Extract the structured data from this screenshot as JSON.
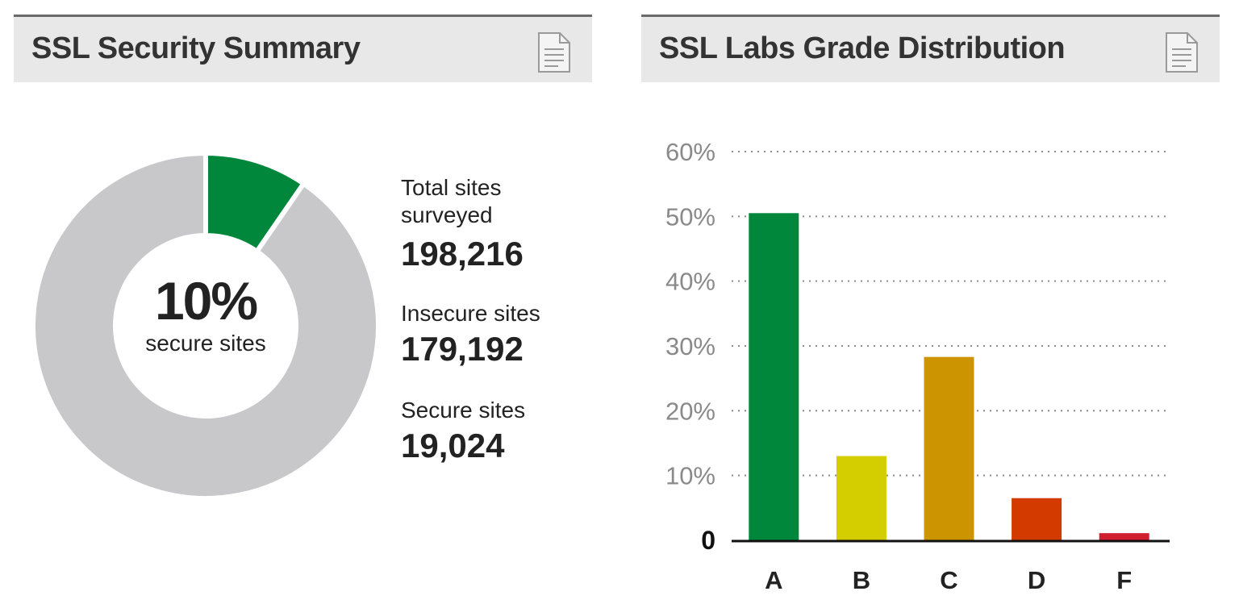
{
  "summary": {
    "title": "SSL Security Summary",
    "center_value": "10%",
    "center_label": "secure sites",
    "total_label": "Total sites surveyed",
    "total_value": "198,216",
    "insecure_label": "Insecure sites",
    "insecure_value": "179,192",
    "secure_label": "Secure sites",
    "secure_value": "19,024",
    "colors": {
      "secure": "#00873c",
      "insecure": "#c8c8cb"
    }
  },
  "distribution": {
    "title": "SSL Labs Grade Distribution"
  },
  "header_icon": "document-icon",
  "chart_data": [
    {
      "type": "pie",
      "labels": [
        "Secure sites",
        "Insecure sites"
      ],
      "values": [
        19024,
        179192
      ],
      "colors": [
        "#00873c",
        "#c8c8cb"
      ]
    },
    {
      "type": "bar",
      "categories": [
        "A",
        "B",
        "C",
        "D",
        "F"
      ],
      "values": [
        50.5,
        13,
        28.3,
        6.5,
        1.1
      ],
      "colors": [
        "#00873c",
        "#d4cd00",
        "#cc9400",
        "#d23a00",
        "#d0202e"
      ],
      "ylim": [
        0,
        60
      ],
      "yticks": [
        0,
        10,
        20,
        30,
        40,
        50,
        60
      ],
      "ytick_labels": [
        "0",
        "10%",
        "20%",
        "30%",
        "40%",
        "50%",
        "60%"
      ],
      "grid": true
    }
  ]
}
